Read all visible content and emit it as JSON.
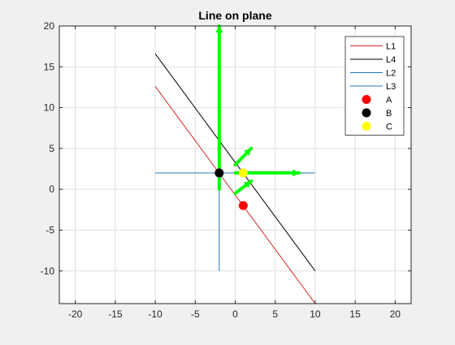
{
  "chart_data": {
    "type": "line",
    "title": "Line on plane",
    "xlabel": "",
    "ylabel": "",
    "xlim": [
      -22,
      22
    ],
    "ylim": [
      -14,
      20
    ],
    "xticks": [
      -20,
      -15,
      -10,
      -5,
      0,
      5,
      10,
      15,
      20
    ],
    "yticks": [
      -10,
      -5,
      0,
      5,
      10,
      15,
      20
    ],
    "xtick_labels": [
      "-20",
      "-15",
      "-10",
      "-5",
      "0",
      "5",
      "10",
      "15",
      "20"
    ],
    "ytick_labels": [
      "-10",
      "-5",
      "0",
      "5",
      "10",
      "15",
      "20"
    ],
    "grid": true,
    "legend_position": "top-right",
    "series": [
      {
        "name": "L1",
        "kind": "line",
        "color": "#d62728",
        "x": [
          -10,
          10
        ],
        "y": [
          12.6,
          -14
        ]
      },
      {
        "name": "L4",
        "kind": "line",
        "color": "#000000",
        "x": [
          -10,
          10
        ],
        "y": [
          16.6,
          -10
        ]
      },
      {
        "name": "L2",
        "kind": "line",
        "color": "#1f77b4",
        "x": [
          -10,
          10
        ],
        "y": [
          2,
          2
        ]
      },
      {
        "name": "L3",
        "kind": "line",
        "color": "#1f77b4",
        "x": [
          -2,
          -2
        ],
        "y": [
          -10,
          2
        ]
      },
      {
        "name": "A",
        "kind": "point",
        "color": "#ff0000",
        "x": [
          1
        ],
        "y": [
          -2
        ]
      },
      {
        "name": "B",
        "kind": "point",
        "color": "#000000",
        "x": [
          -2
        ],
        "y": [
          2
        ]
      },
      {
        "name": "C",
        "kind": "point",
        "color": "#ffff00",
        "x": [
          1
        ],
        "y": [
          2
        ]
      }
    ],
    "arrows": [
      {
        "color": "#00ff00",
        "x": [
          -2,
          -2
        ],
        "y": [
          0,
          20
        ]
      },
      {
        "color": "#00ff00",
        "x": [
          0,
          8
        ],
        "y": [
          2,
          2
        ]
      },
      {
        "color": "#00ff00",
        "x": [
          0,
          2
        ],
        "y": [
          3,
          5
        ]
      },
      {
        "color": "#00ff00",
        "x": [
          0,
          2
        ],
        "y": [
          -0.5,
          1
        ]
      }
    ]
  }
}
